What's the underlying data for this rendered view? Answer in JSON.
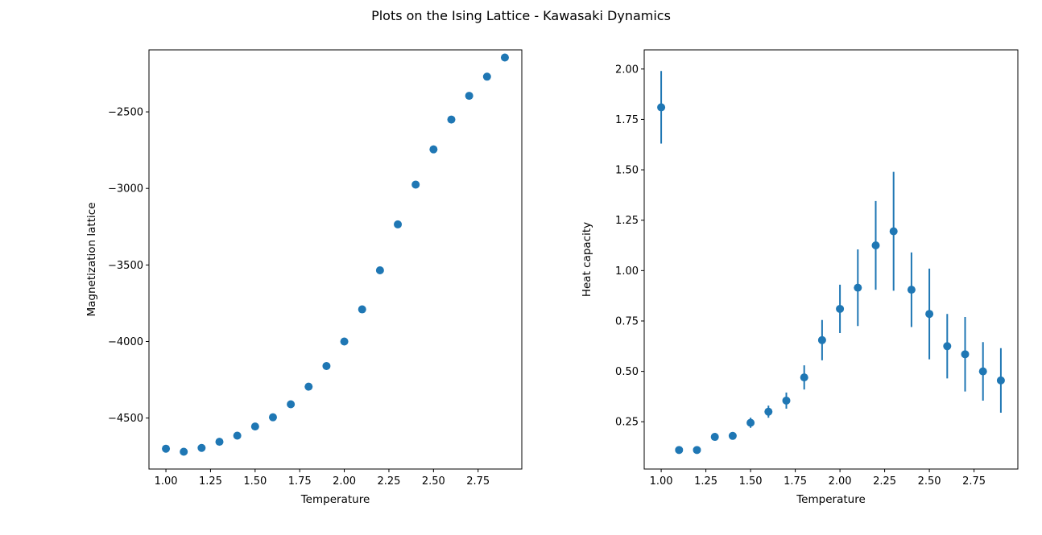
{
  "figure_title": "Plots on the Ising Lattice - Kawasaki Dynamics",
  "chart_data": [
    {
      "type": "scatter",
      "xlabel": "Temperature",
      "ylabel": "Magnetization lattice",
      "xlim": [
        0.905,
        2.995
      ],
      "ylim": [
        -4833,
        -2095
      ],
      "xticks": [
        1.0,
        1.25,
        1.5,
        1.75,
        2.0,
        2.25,
        2.5,
        2.75
      ],
      "xtick_labels": [
        "1.00",
        "1.25",
        "1.50",
        "1.75",
        "2.00",
        "2.25",
        "2.50",
        "2.75"
      ],
      "yticks": [
        -4500,
        -4000,
        -3500,
        -3000,
        -2500
      ],
      "ytick_labels": [
        "−4500",
        "−4000",
        "−3500",
        "−3000",
        "−2500"
      ],
      "x": [
        1.0,
        1.1,
        1.2,
        1.3,
        1.4,
        1.5,
        1.6,
        1.7,
        1.8,
        1.9,
        2.0,
        2.1,
        2.2,
        2.3,
        2.4,
        2.5,
        2.6,
        2.7,
        2.8,
        2.9
      ],
      "y": [
        -4700,
        -4720,
        -4695,
        -4655,
        -4615,
        -4555,
        -4495,
        -4410,
        -4295,
        -4160,
        -4000,
        -3790,
        -3535,
        -3235,
        -2975,
        -2745,
        -2550,
        -2395,
        -2270,
        -2145
      ]
    },
    {
      "type": "errorbar",
      "xlabel": "Temperature",
      "ylabel": "Heat capacity",
      "xlim": [
        0.905,
        2.995
      ],
      "ylim": [
        0.0155,
        2.095
      ],
      "xticks": [
        1.0,
        1.25,
        1.5,
        1.75,
        2.0,
        2.25,
        2.5,
        2.75
      ],
      "xtick_labels": [
        "1.00",
        "1.25",
        "1.50",
        "1.75",
        "2.00",
        "2.25",
        "2.50",
        "2.75"
      ],
      "yticks": [
        0.25,
        0.5,
        0.75,
        1.0,
        1.25,
        1.5,
        1.75,
        2.0
      ],
      "ytick_labels": [
        "0.25",
        "0.50",
        "0.75",
        "1.00",
        "1.25",
        "1.50",
        "1.75",
        "2.00"
      ],
      "x": [
        1.0,
        1.1,
        1.2,
        1.3,
        1.4,
        1.5,
        1.6,
        1.7,
        1.8,
        1.9,
        2.0,
        2.1,
        2.2,
        2.3,
        2.4,
        2.5,
        2.6,
        2.7,
        2.8,
        2.9
      ],
      "y": [
        1.81,
        0.11,
        0.11,
        0.175,
        0.18,
        0.245,
        0.3,
        0.355,
        0.47,
        0.655,
        0.81,
        0.915,
        1.125,
        1.195,
        0.905,
        0.785,
        0.625,
        0.585,
        0.5,
        0.455
      ],
      "yerr": [
        0.18,
        0.01,
        0.01,
        0.01,
        0.01,
        0.025,
        0.03,
        0.04,
        0.06,
        0.1,
        0.12,
        0.19,
        0.22,
        0.295,
        0.185,
        0.225,
        0.16,
        0.185,
        0.145,
        0.16
      ]
    }
  ],
  "colors": {
    "series": "#1f77b4"
  }
}
